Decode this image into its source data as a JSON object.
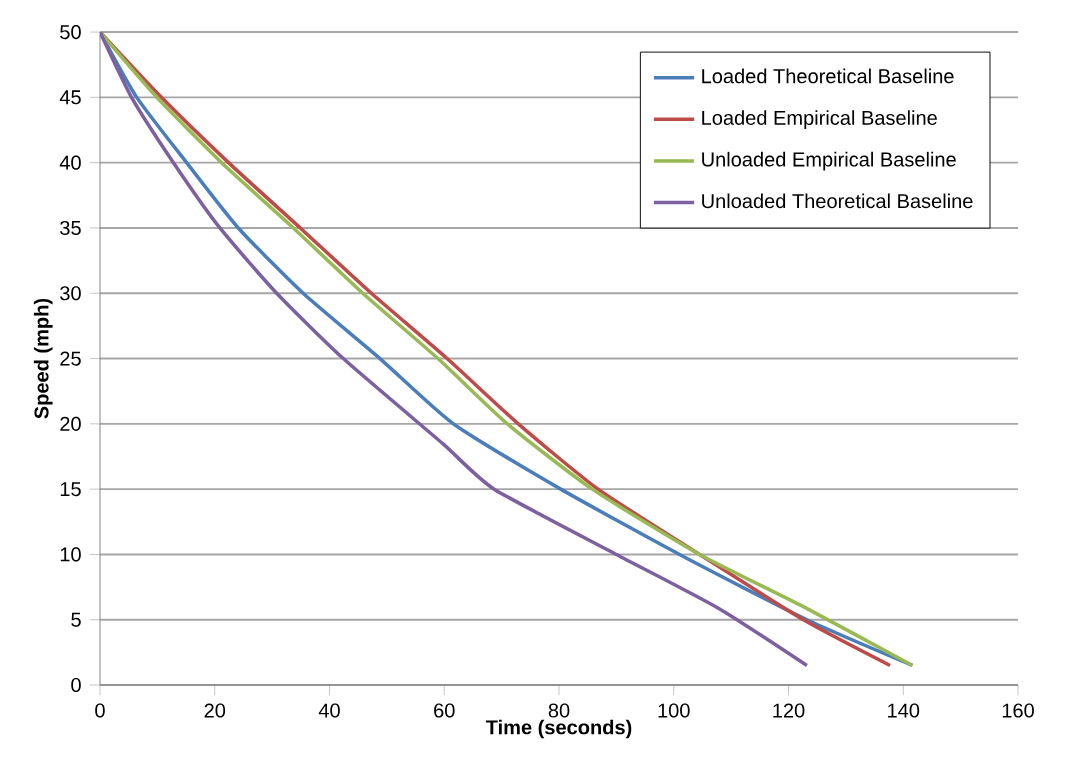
{
  "chart_data": {
    "type": "line",
    "xlabel": "Time (seconds)",
    "ylabel": "Speed (mph)",
    "xlim": [
      0,
      160
    ],
    "xticks": [
      0,
      20,
      40,
      60,
      80,
      100,
      120,
      140,
      160
    ],
    "ylim": [
      0,
      50
    ],
    "yticks": [
      0,
      5,
      10,
      15,
      20,
      25,
      30,
      35,
      40,
      45,
      50
    ],
    "grid": "y",
    "legend": "top right",
    "marker": "none",
    "line_style": "solid",
    "series": [
      {
        "name": "Loaded Theoretical Baseline",
        "color": "#4a7ebb",
        "x": [
          0,
          6.4,
          15.1,
          24.1,
          35.4,
          48.8,
          61.6,
          80.3,
          101,
          123.2,
          141.6
        ],
        "values": [
          50,
          45,
          40,
          35,
          30,
          25,
          20,
          15,
          10,
          5,
          1.5
        ]
      },
      {
        "name": "Loaded Empirical Baseline",
        "color": "#be4b48",
        "x": [
          0,
          10.7,
          22.4,
          34.9,
          47.3,
          60.5,
          72.9,
          86.8,
          104.5,
          122.6,
          137.7
        ],
        "values": [
          50,
          45,
          40,
          35,
          30,
          25,
          20,
          15,
          10,
          5,
          1.5
        ]
      },
      {
        "name": "Unloaded Empirical Baseline",
        "color": "#98b954",
        "x": [
          0,
          9.9,
          21.2,
          33.7,
          45.8,
          58.9,
          71,
          85.8,
          104.5,
          122.6,
          141.6
        ],
        "values": [
          50,
          45,
          40,
          35,
          30,
          25,
          20,
          15,
          10,
          6,
          1.5
        ]
      },
      {
        "name": "Unloaded Theoretical Baseline",
        "color": "#7d60a0",
        "x": [
          0,
          5.5,
          12.8,
          20.9,
          30.8,
          42.4,
          59.7,
          68.7,
          90,
          107.7,
          123.2
        ],
        "values": [
          50,
          45,
          40,
          35,
          30,
          25,
          18.5,
          15,
          10,
          5.9,
          1.5
        ]
      }
    ]
  }
}
